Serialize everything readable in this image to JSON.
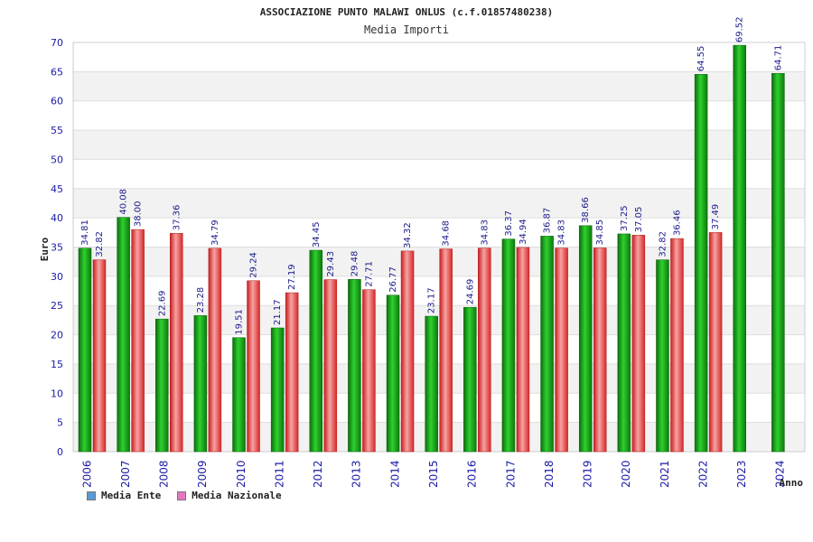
{
  "chart_data": {
    "type": "bar",
    "title": "ASSOCIAZIONE PUNTO MALAWI ONLUS (c.f.01857480238)",
    "subtitle": "Media Importi",
    "xlabel": "Anno",
    "ylabel": "Euro",
    "ylim": [
      0,
      70
    ],
    "yticks": [
      0,
      5,
      10,
      15,
      20,
      25,
      30,
      35,
      40,
      45,
      50,
      55,
      60,
      65,
      70
    ],
    "grid": true,
    "legend_position": "bottom-left",
    "categories": [
      "2006",
      "2007",
      "2008",
      "2009",
      "2010",
      "2011",
      "2012",
      "2013",
      "2014",
      "2015",
      "2016",
      "2017",
      "2018",
      "2019",
      "2020",
      "2021",
      "2022",
      "2023",
      "2024"
    ],
    "series": [
      {
        "name": "Media Ente",
        "color": "#22aa22",
        "legend_color": "#5b9bd5",
        "values": [
          34.81,
          40.08,
          22.69,
          23.28,
          19.51,
          21.17,
          34.45,
          29.48,
          26.77,
          23.17,
          24.69,
          36.37,
          36.87,
          38.66,
          37.25,
          32.82,
          64.55,
          69.52,
          64.71
        ],
        "labels": [
          "34.81",
          "40.08",
          "22.69",
          "23.28",
          "19.51",
          "21.17",
          "34.45",
          "29.48",
          "26.77",
          "23.17",
          "24.69",
          "36.37",
          "36.87",
          "38.66",
          "37.25",
          "32.82",
          "64.55",
          "69.52",
          "64.71"
        ]
      },
      {
        "name": "Media Nazionale",
        "color": "#e63b3b",
        "legend_color": "#e377c2",
        "values": [
          32.82,
          38.0,
          37.36,
          34.79,
          29.24,
          27.19,
          29.43,
          27.71,
          34.32,
          34.68,
          34.83,
          34.94,
          34.83,
          34.85,
          37.05,
          36.46,
          37.49,
          null,
          null
        ],
        "labels": [
          "32.82",
          "38.00",
          "37.36",
          "34.79",
          "29.24",
          "27.19",
          "29.43",
          "27.71",
          "34.32",
          "34.68",
          "34.83",
          "34.94",
          "34.83",
          "34.85",
          "37.05",
          "36.46",
          "37.49",
          "",
          ""
        ]
      }
    ]
  }
}
